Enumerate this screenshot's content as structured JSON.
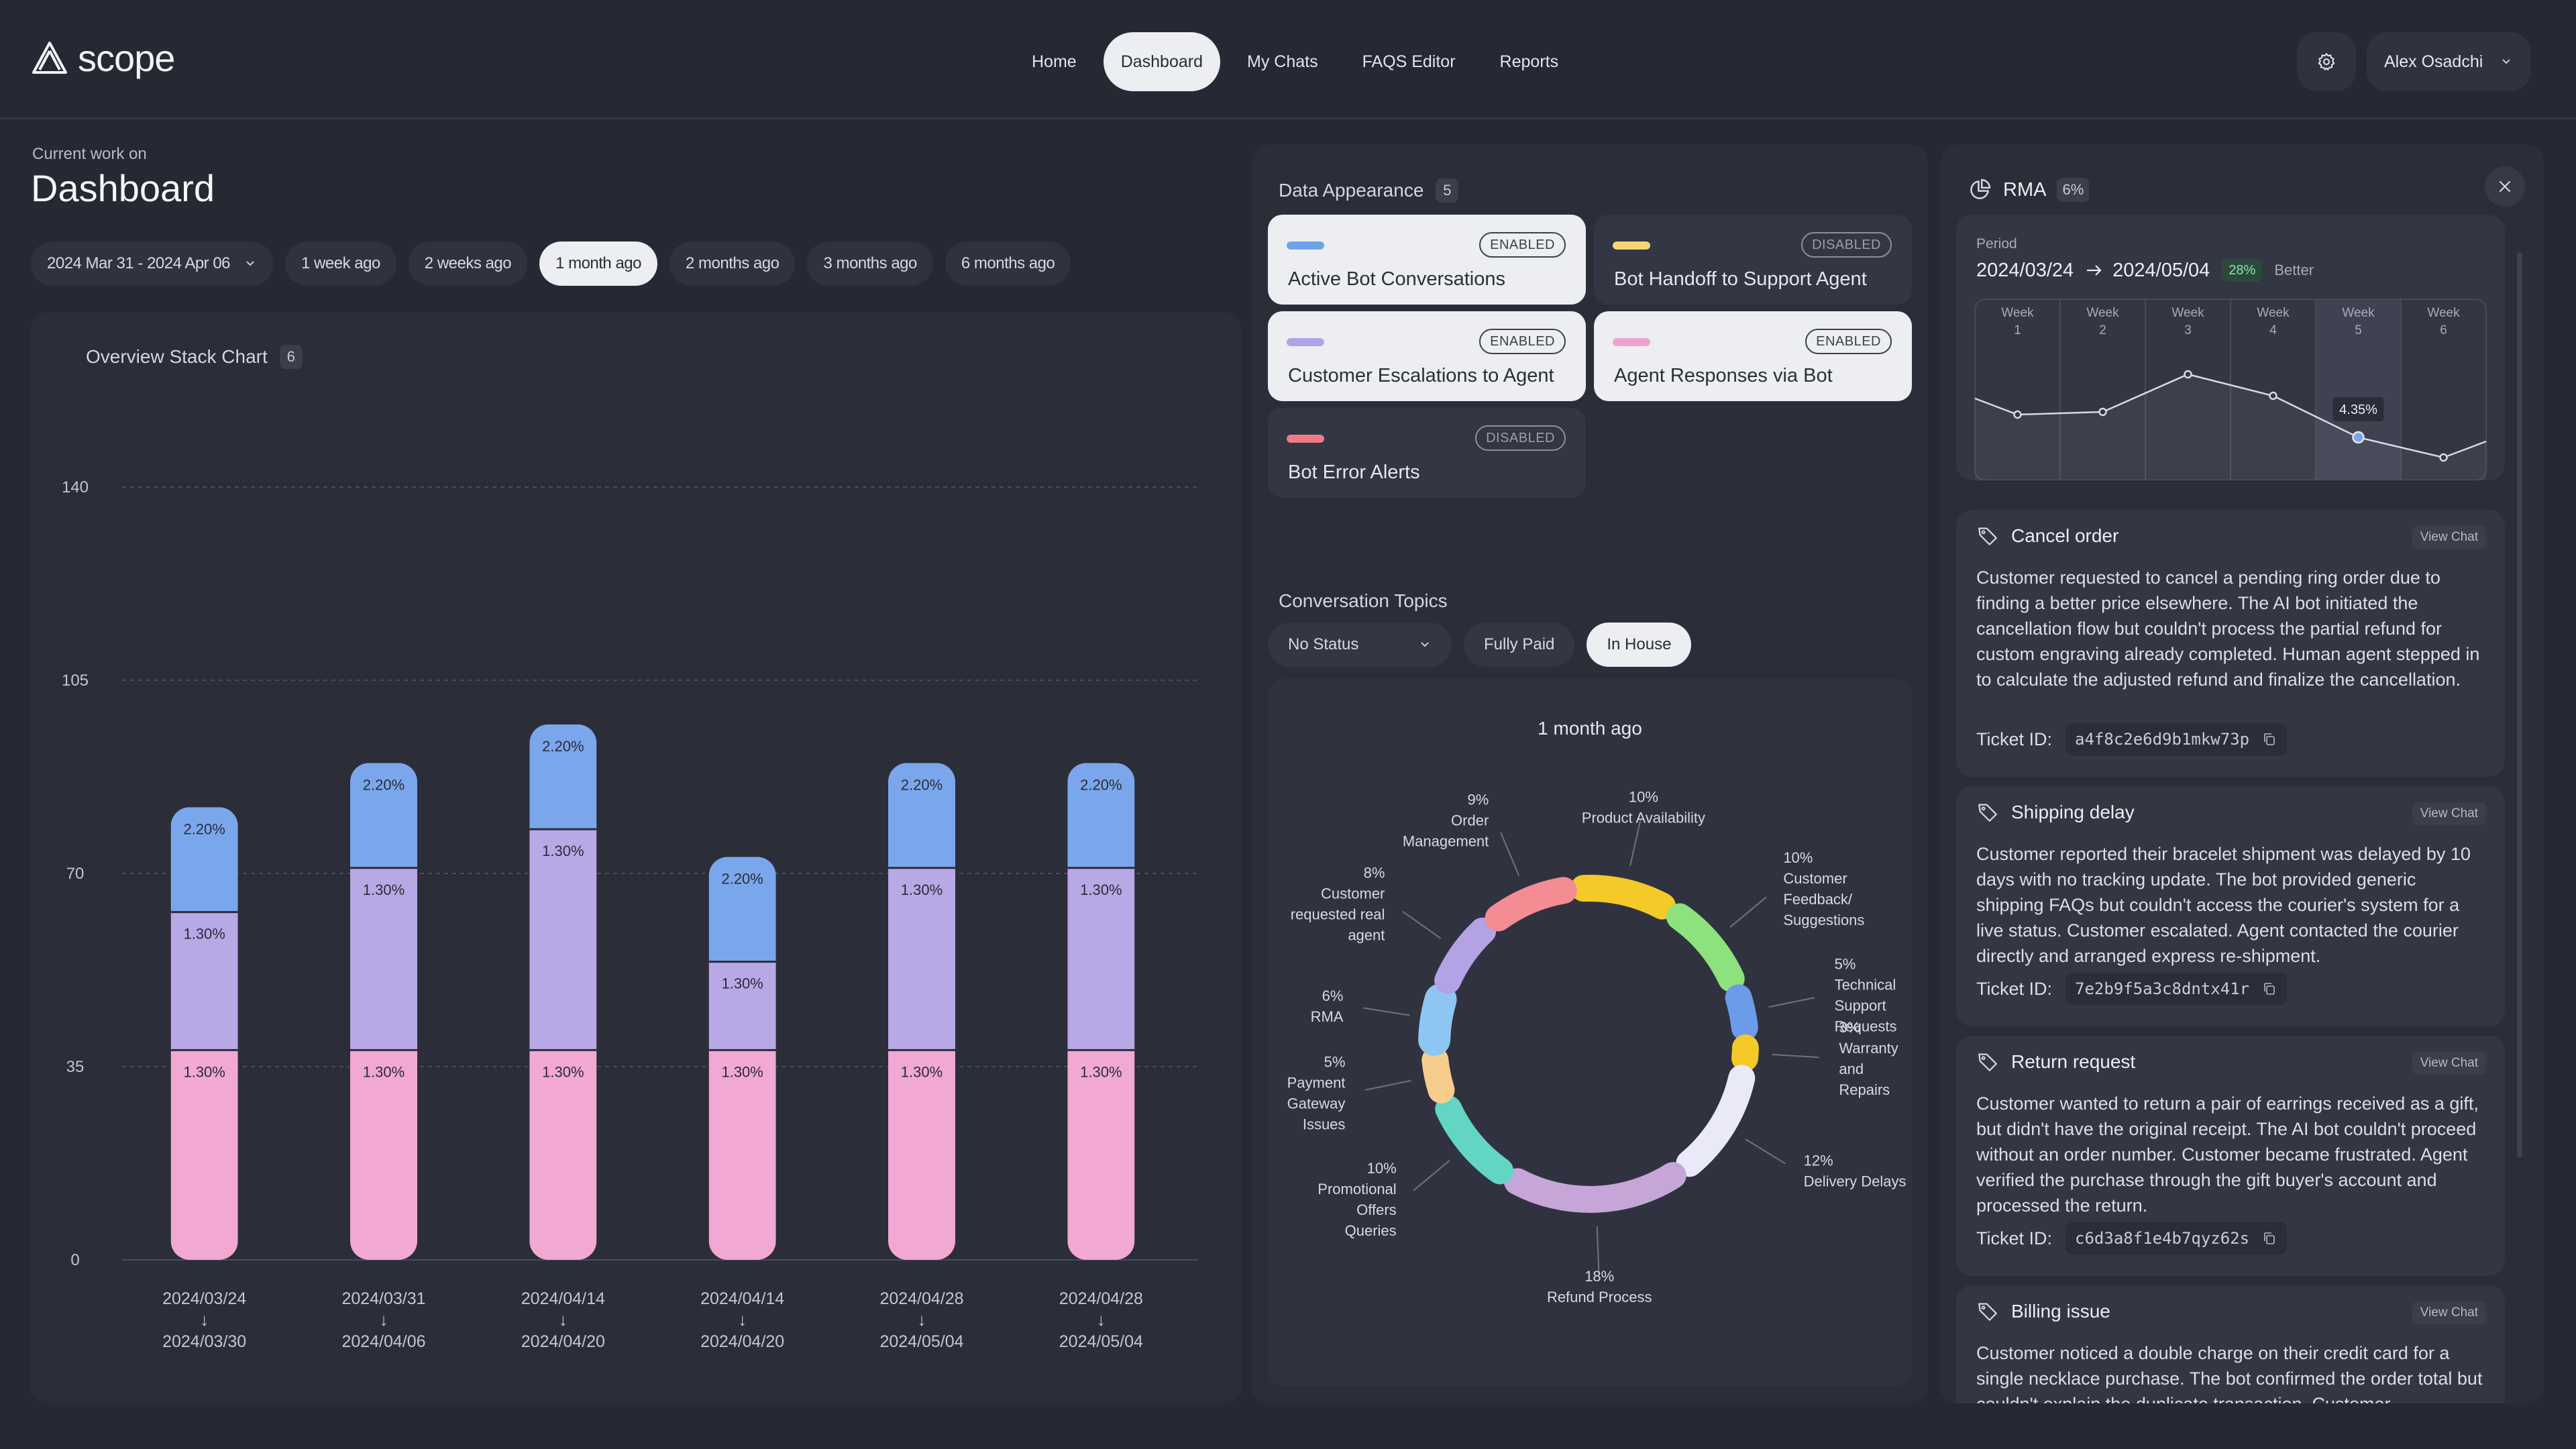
{
  "app": {
    "logo_text": "scope"
  },
  "nav": {
    "items": [
      "Home",
      "Dashboard",
      "My Chats",
      "FAQS Editor",
      "Reports"
    ],
    "active_index": 1
  },
  "user": {
    "name": "Alex Osadchi"
  },
  "header": {
    "crumb": "Current work on",
    "title": "Dashboard"
  },
  "ranges": {
    "date_select": "2024 Mar 31 - 2024 Apr 06",
    "items": [
      "1 week ago",
      "2 weeks ago",
      "1 month ago",
      "2 months ago",
      "3 months ago",
      "6 months ago"
    ],
    "active_index": 2
  },
  "overview": {
    "title": "Overview Stack Chart",
    "count": "6"
  },
  "chart_data": {
    "type": "bar",
    "stacked": true,
    "categories": [
      [
        "2024/03/24",
        "2024/03/30"
      ],
      [
        "2024/03/31",
        "2024/04/06"
      ],
      [
        "2024/04/14",
        "2024/04/20"
      ],
      [
        "2024/04/14",
        "2024/04/20"
      ],
      [
        "2024/04/28",
        "2024/05/04"
      ],
      [
        "2024/04/28",
        "2024/05/04"
      ]
    ],
    "yticks": [
      0,
      35,
      70,
      105,
      140
    ],
    "ylim": [
      0,
      140
    ],
    "grid": true,
    "series": [
      {
        "values": [
          38,
          38,
          38,
          38,
          38,
          38
        ],
        "labels": [
          "1.30%",
          "1.30%",
          "1.30%",
          "1.30%",
          "1.30%",
          "1.30%"
        ],
        "color": "#f1a8d2"
      },
      {
        "values": [
          25,
          33,
          40,
          16,
          33,
          33
        ],
        "labels": [
          "1.30%",
          "1.30%",
          "1.30%",
          "1.30%",
          "1.30%",
          "1.30%"
        ],
        "color": "#b8a8e6"
      },
      {
        "values": [
          19,
          19,
          19,
          19,
          19,
          19
        ],
        "labels": [
          "2.20%",
          "2.20%",
          "2.20%",
          "2.20%",
          "2.20%",
          "2.20%"
        ],
        "color": "#7aa7ec"
      }
    ]
  },
  "data_appearance": {
    "title": "Data Appearance",
    "count": "5",
    "cards": [
      {
        "label": "Active Bot Conversations",
        "state": "ENABLED",
        "color": "#6fa3e8"
      },
      {
        "label": "Bot Handoff to Support Agent",
        "state": "DISABLED",
        "color": "#f5d676"
      },
      {
        "label": "Customer Escalations to Agent",
        "state": "ENABLED",
        "color": "#b3a2e4"
      },
      {
        "label": "Agent Responses via Bot",
        "state": "ENABLED",
        "color": "#f0a2cf"
      },
      {
        "label": "Bot Error Alerts",
        "state": "DISABLED",
        "color": "#f07b86"
      }
    ]
  },
  "topics": {
    "title": "Conversation Topics",
    "status_select": "No Status",
    "filters": [
      "Fully Paid",
      "In House"
    ],
    "active_filter": 1,
    "donut_title": "1 month ago",
    "segments": [
      {
        "pct": "10%",
        "label": [
          "Product Availability"
        ],
        "value": 10,
        "color": "#f4c928"
      },
      {
        "pct": "10%",
        "label": [
          "Customer",
          "Feedback/",
          "Suggestions"
        ],
        "value": 10,
        "color": "#8ee27d"
      },
      {
        "pct": "5%",
        "label": [
          "Technical",
          "Support",
          "Requests"
        ],
        "value": 5,
        "color": "#6c9bea"
      },
      {
        "pct": "3%",
        "label": [
          "Warranty",
          "and",
          "Repairs"
        ],
        "value": 3,
        "color": "#f4c928"
      },
      {
        "pct": "12%",
        "label": [
          "Delivery Delays"
        ],
        "value": 12,
        "color": "#e9e9f7"
      },
      {
        "pct": "18%",
        "label": [
          "Refund Process"
        ],
        "value": 18,
        "color": "#c6a6d8"
      },
      {
        "pct": "10%",
        "label": [
          "Promotional",
          "Offers",
          "Queries"
        ],
        "value": 10,
        "color": "#63d6c3"
      },
      {
        "pct": "5%",
        "label": [
          "Payment",
          "Gateway",
          "Issues"
        ],
        "value": 5,
        "color": "#f6cd8c"
      },
      {
        "pct": "6%",
        "label": [
          "RMA"
        ],
        "value": 6,
        "color": "#8ec6f3"
      },
      {
        "pct": "8%",
        "label": [
          "Customer",
          "requested real",
          "agent"
        ],
        "value": 8,
        "color": "#b3a2e4"
      },
      {
        "pct": "9%",
        "label": [
          "Order",
          "Management"
        ],
        "value": 9,
        "color": "#f48c94"
      }
    ]
  },
  "rma": {
    "title": "RMA",
    "pct": "6%",
    "period_label": "Period",
    "period_from": "2024/03/24",
    "period_to": "2024/05/04",
    "change": "28%",
    "change_text": "Better",
    "weeks": [
      [
        "Week",
        "1"
      ],
      [
        "Week",
        "2"
      ],
      [
        "Week",
        "3"
      ],
      [
        "Week",
        "4"
      ],
      [
        "Week",
        "5"
      ],
      [
        "Week",
        "6"
      ]
    ],
    "highlight_week": 5,
    "tooltip": "4.35%",
    "line": [
      5.8,
      5.2,
      5.3,
      6.7,
      5.9,
      4.35,
      3.6,
      4.2
    ]
  },
  "tickets": [
    {
      "title": "Cancel order",
      "view": "View Chat",
      "body": "Customer requested to cancel a pending ring order due to finding a better price elsewhere. The AI bot initiated the cancellation flow but couldn't process the partial refund for custom engraving already completed. Human agent stepped in to calculate the adjusted refund and finalize the cancellation.",
      "id_label": "Ticket ID:",
      "id": "a4f8c2e6d9b1mkw73p"
    },
    {
      "title": "Shipping delay",
      "view": "View Chat",
      "body": "Customer reported their bracelet shipment was delayed by 10 days with no tracking update. The bot provided generic shipping FAQs but couldn't access the courier's system for a live status. Customer escalated. Agent contacted the courier directly and arranged express re-shipment.",
      "id_label": "Ticket ID:",
      "id": "7e2b9f5a3c8dntx41r"
    },
    {
      "title": "Return request",
      "view": "View Chat",
      "body": "Customer wanted to return a pair of earrings received as a gift, but didn't have the original receipt. The AI bot couldn't proceed without an order number. Customer became frustrated. Agent verified the purchase through the gift buyer's account and processed the return.",
      "id_label": "Ticket ID:",
      "id": "c6d3a8f1e4b7qyz62s"
    },
    {
      "title": "Billing issue",
      "view": "View Chat",
      "body": "Customer noticed a double charge on their credit card for a single necklace purchase. The bot confirmed the order total but couldn't explain the duplicate transaction. Customer",
      "id_label": "",
      "id": ""
    }
  ]
}
